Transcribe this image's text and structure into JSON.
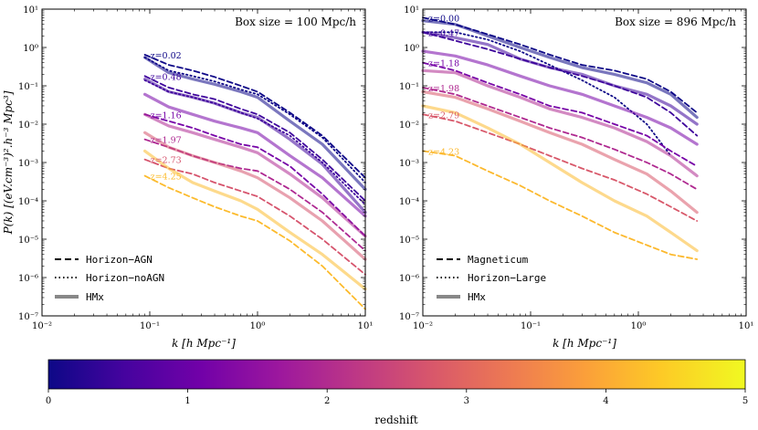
{
  "chart_data": [
    {
      "type": "line",
      "panel": "left",
      "title": "Box size = 100 Mpc/h",
      "xlabel": "k [h Mpc⁻¹]",
      "ylabel": "P(k) [(eV.cm⁻³)².h⁻³ Mpc³]",
      "xscale": "log",
      "yscale": "log",
      "xlim": [
        0.01,
        10
      ],
      "ylim": [
        1e-07,
        10
      ],
      "xtick_labels": [
        "10⁻²",
        "10⁻¹",
        "10⁰",
        "10¹"
      ],
      "ytick_labels": [
        "10⁻⁷",
        "10⁻⁶",
        "10⁻⁵",
        "10⁻⁴",
        "10⁻³",
        "10⁻²",
        "10⁻¹",
        "10⁰",
        "10¹"
      ],
      "legend": [
        "Horizon−AGN",
        "Horizon−noAGN",
        "HMx"
      ],
      "legend_position": "lower-left",
      "z_labels": [
        "z=0.02",
        "z=0.48",
        "z=1.16",
        "z=1.97",
        "z=2.73",
        "z=4.25"
      ],
      "x": [
        0.09,
        0.15,
        0.25,
        0.4,
        0.7,
        1.0,
        2.0,
        4.0,
        10.0
      ],
      "series": [
        {
          "name": "Horizon-AGN z=0.02",
          "style": "dashed",
          "z": 0.02,
          "values": [
            0.65,
            0.35,
            0.25,
            0.17,
            0.1,
            0.07,
            0.02,
            0.005,
            0.0004
          ]
        },
        {
          "name": "Horizon-noAGN z=0.02",
          "style": "dotted",
          "z": 0.02,
          "values": [
            0.55,
            0.25,
            0.18,
            0.13,
            0.08,
            0.06,
            0.018,
            0.0045,
            0.0003
          ]
        },
        {
          "name": "HMx z=0.02",
          "style": "solid",
          "z": 0.02,
          "values": [
            0.55,
            0.22,
            0.15,
            0.11,
            0.07,
            0.05,
            0.012,
            0.003,
            0.0002
          ]
        },
        {
          "name": "Horizon-AGN z=0.48",
          "style": "dashed",
          "z": 0.48,
          "values": [
            0.18,
            0.09,
            0.06,
            0.045,
            0.025,
            0.018,
            0.006,
            0.0012,
            0.0001
          ]
        },
        {
          "name": "Horizon-noAGN z=0.48",
          "style": "dotted",
          "z": 0.48,
          "values": [
            0.14,
            0.07,
            0.05,
            0.035,
            0.02,
            0.014,
            0.005,
            0.001,
            8e-05
          ]
        },
        {
          "name": "HMx z=0.48",
          "style": "solid",
          "z": 0.48,
          "values": [
            0.15,
            0.07,
            0.05,
            0.035,
            0.02,
            0.015,
            0.004,
            0.0009,
            5e-05
          ]
        },
        {
          "name": "Horizon-AGN z=1.16",
          "style": "dashed",
          "z": 1.16,
          "values": [
            0.018,
            0.012,
            0.008,
            0.005,
            0.003,
            0.0025,
            0.0008,
            0.00015,
            1.2e-05
          ]
        },
        {
          "name": "HMx z=1.16",
          "style": "solid",
          "z": 1.16,
          "values": [
            0.06,
            0.028,
            0.018,
            0.012,
            0.008,
            0.006,
            0.0015,
            0.0004,
            4e-05
          ]
        },
        {
          "name": "Horizon-AGN z=1.97",
          "style": "dashed",
          "z": 1.97,
          "values": [
            0.004,
            0.0025,
            0.0015,
            0.001,
            0.0007,
            0.0006,
            0.0002,
            5e-05,
            5e-06
          ]
        },
        {
          "name": "HMx z=1.97",
          "style": "solid",
          "z": 1.97,
          "values": [
            0.018,
            0.009,
            0.006,
            0.004,
            0.0025,
            0.0018,
            0.0005,
            0.00012,
            1.2e-05
          ]
        },
        {
          "name": "Horizon-AGN z=2.73",
          "style": "dashed",
          "z": 2.73,
          "values": [
            0.0012,
            0.0007,
            0.0005,
            0.0003,
            0.00018,
            0.00013,
            4e-05,
            1e-05,
            1.2e-06
          ]
        },
        {
          "name": "HMx z=2.73",
          "style": "solid",
          "z": 2.73,
          "values": [
            0.006,
            0.0025,
            0.0015,
            0.001,
            0.0006,
            0.0004,
            0.00012,
            3e-05,
            3e-06
          ]
        },
        {
          "name": "Horizon-AGN z=4.25",
          "style": "dashed",
          "z": 4.25,
          "values": [
            0.00045,
            0.00022,
            0.00012,
            7e-05,
            4e-05,
            3e-05,
            9e-06,
            2e-06,
            1.5e-07
          ]
        },
        {
          "name": "HMx z=4.25",
          "style": "solid",
          "z": 4.25,
          "values": [
            0.002,
            0.0007,
            0.0003,
            0.00018,
            0.0001,
            6e-05,
            1.5e-05,
            4e-06,
            5e-07
          ]
        }
      ]
    },
    {
      "type": "line",
      "panel": "right",
      "title": "Box size = 896 Mpc/h",
      "xlabel": "k [h Mpc⁻¹]",
      "ylabel": "",
      "xscale": "log",
      "yscale": "log",
      "xlim": [
        0.01,
        10
      ],
      "ylim": [
        1e-07,
        10
      ],
      "xtick_labels": [
        "10⁻²",
        "10⁻¹",
        "10⁰",
        "10¹"
      ],
      "ytick_labels": [
        "10⁻⁷",
        "10⁻⁶",
        "10⁻⁵",
        "10⁻⁴",
        "10⁻³",
        "10⁻²",
        "10⁻¹",
        "10⁰",
        "10¹"
      ],
      "legend": [
        "Magneticum",
        "Horizon−Large",
        "HMx"
      ],
      "legend_position": "lower-left",
      "z_labels": [
        "z=0.00",
        "z=0.47",
        "z=1.18",
        "z=1.98",
        "z=2.79",
        "z=4.23"
      ],
      "x": [
        0.01,
        0.02,
        0.04,
        0.08,
        0.15,
        0.3,
        0.6,
        1.2,
        2.0,
        3.5
      ],
      "series": [
        {
          "name": "Magneticum z=0.00",
          "style": "dashed",
          "z": 0.0,
          "values": [
            6,
            4,
            2.2,
            1.2,
            0.65,
            0.35,
            0.25,
            0.15,
            0.07,
            0.02
          ]
        },
        {
          "name": "Horizon-Large z=0.00",
          "style": "dotted",
          "z": 0.0,
          "values": [
            2.5,
            2.5,
            1.6,
            0.8,
            0.35,
            0.14,
            0.05,
            0.01,
            0.0015,
            null
          ]
        },
        {
          "name": "HMx z=0.00",
          "style": "solid",
          "z": 0.0,
          "values": [
            5,
            4,
            2.0,
            1.0,
            0.55,
            0.3,
            0.2,
            0.12,
            0.06,
            0.015
          ]
        },
        {
          "name": "Magneticum z=0.47",
          "style": "dashed",
          "z": 0.47,
          "values": [
            2.5,
            1.5,
            0.9,
            0.5,
            0.3,
            0.18,
            0.1,
            0.05,
            0.02,
            0.005
          ]
        },
        {
          "name": "HMx z=0.47",
          "style": "solid",
          "z": 0.47,
          "values": [
            2.5,
            1.8,
            1.2,
            0.5,
            0.3,
            0.2,
            0.1,
            0.06,
            0.03,
            0.01
          ]
        },
        {
          "name": "Magneticum z=1.18",
          "style": "dashed",
          "z": 1.18,
          "values": [
            0.4,
            0.25,
            0.12,
            0.06,
            0.03,
            0.02,
            0.01,
            0.005,
            0.002,
            0.0008
          ]
        },
        {
          "name": "HMx z=1.18",
          "style": "solid",
          "z": 1.18,
          "values": [
            0.8,
            0.6,
            0.35,
            0.18,
            0.1,
            0.06,
            0.03,
            0.015,
            0.008,
            0.003
          ]
        },
        {
          "name": "Magneticum z=1.98",
          "style": "dashed",
          "z": 1.98,
          "values": [
            0.09,
            0.06,
            0.03,
            0.015,
            0.008,
            0.0045,
            0.0022,
            0.001,
            0.0005,
            0.0002
          ]
        },
        {
          "name": "HMx z=1.98",
          "style": "solid",
          "z": 1.98,
          "values": [
            0.25,
            0.22,
            0.1,
            0.05,
            0.025,
            0.015,
            0.008,
            0.0035,
            0.0015,
            0.00045
          ]
        },
        {
          "name": "Magneticum z=2.79",
          "style": "dashed",
          "z": 2.79,
          "values": [
            0.018,
            0.012,
            0.006,
            0.003,
            0.0015,
            0.0007,
            0.00035,
            0.00015,
            7e-05,
            3e-05
          ]
        },
        {
          "name": "HMx z=2.79",
          "style": "solid",
          "z": 2.79,
          "values": [
            0.07,
            0.05,
            0.025,
            0.012,
            0.006,
            0.003,
            0.0012,
            0.0005,
            0.00018,
            5e-05
          ]
        },
        {
          "name": "Magneticum z=4.23",
          "style": "dashed",
          "z": 4.23,
          "values": [
            0.002,
            0.0015,
            0.0006,
            0.00025,
            0.0001,
            4e-05,
            1.5e-05,
            7e-06,
            4e-06,
            3e-06
          ]
        },
        {
          "name": "HMx z=4.23",
          "style": "solid",
          "z": 4.23,
          "values": [
            0.03,
            0.02,
            0.008,
            0.003,
            0.001,
            0.0003,
            0.0001,
            4e-05,
            1.5e-05,
            5e-06
          ]
        }
      ]
    }
  ],
  "colorbar": {
    "label": "redshift",
    "min": 0,
    "max": 5,
    "ticks": [
      "0",
      "1",
      "2",
      "3",
      "4",
      "5"
    ],
    "colormap": "plasma",
    "colors": [
      "#0d0887",
      "#46039f",
      "#7201a8",
      "#9c179e",
      "#bd3786",
      "#d8576b",
      "#ed7953",
      "#fb9f3a",
      "#fdca26",
      "#f0f921"
    ]
  }
}
